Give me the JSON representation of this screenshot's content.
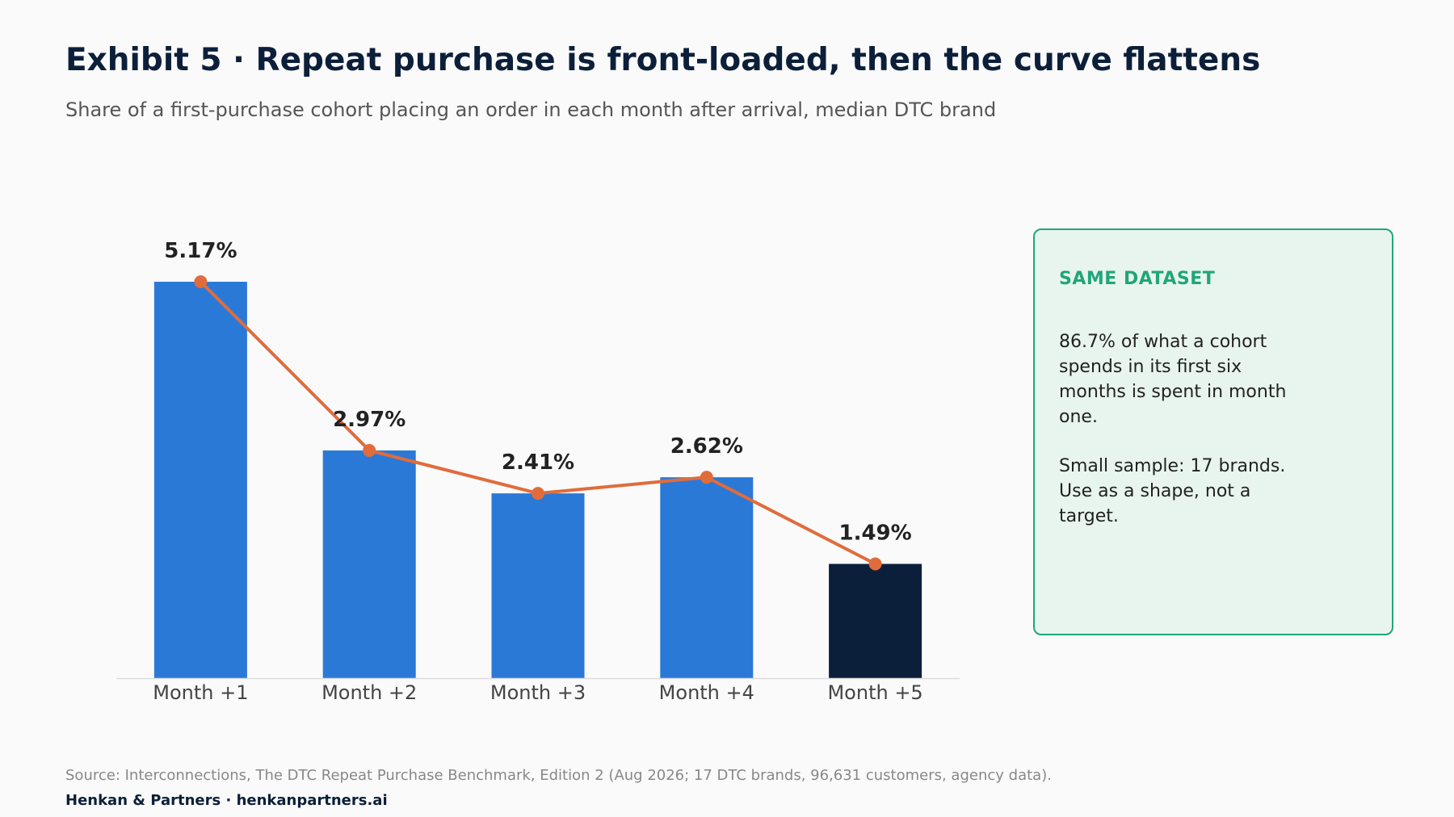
{
  "title": "Exhibit 5 · Repeat purchase is front-loaded, then the curve flattens",
  "subtitle": "Share of a first-purchase cohort placing an order in each month after arrival, median DTC brand",
  "chart_data": {
    "type": "bar",
    "categories": [
      "Month +1",
      "Month +2",
      "Month +3",
      "Month +4",
      "Month +5"
    ],
    "values": [
      5.17,
      2.97,
      2.41,
      2.62,
      1.49
    ],
    "value_labels": [
      "5.17%",
      "2.97%",
      "2.41%",
      "2.62%",
      "1.49%"
    ],
    "unit": "%",
    "ylim": [
      0,
      5.17
    ],
    "overlay": "line-with-markers",
    "grid": false,
    "legend": "none",
    "highlight_index": 4,
    "colors": {
      "bar": "#2b79d6",
      "bar_highlight": "#0c1f3a",
      "line": "#e06c3c",
      "axis": "#dddddd"
    }
  },
  "callout": {
    "heading": "SAME DATASET",
    "paragraph_1": "86.7% of what a cohort spends in its first six months is spent in month one.",
    "paragraph_2": "Small sample: 17 brands. Use as a shape, not a target."
  },
  "footer": {
    "source": "Source: Interconnections, The DTC Repeat Purchase Benchmark, Edition 2 (Aug 2026; 17 DTC brands, 96,631 customers, agency data).",
    "brand": "Henkan & Partners · henkanpartners.ai"
  }
}
